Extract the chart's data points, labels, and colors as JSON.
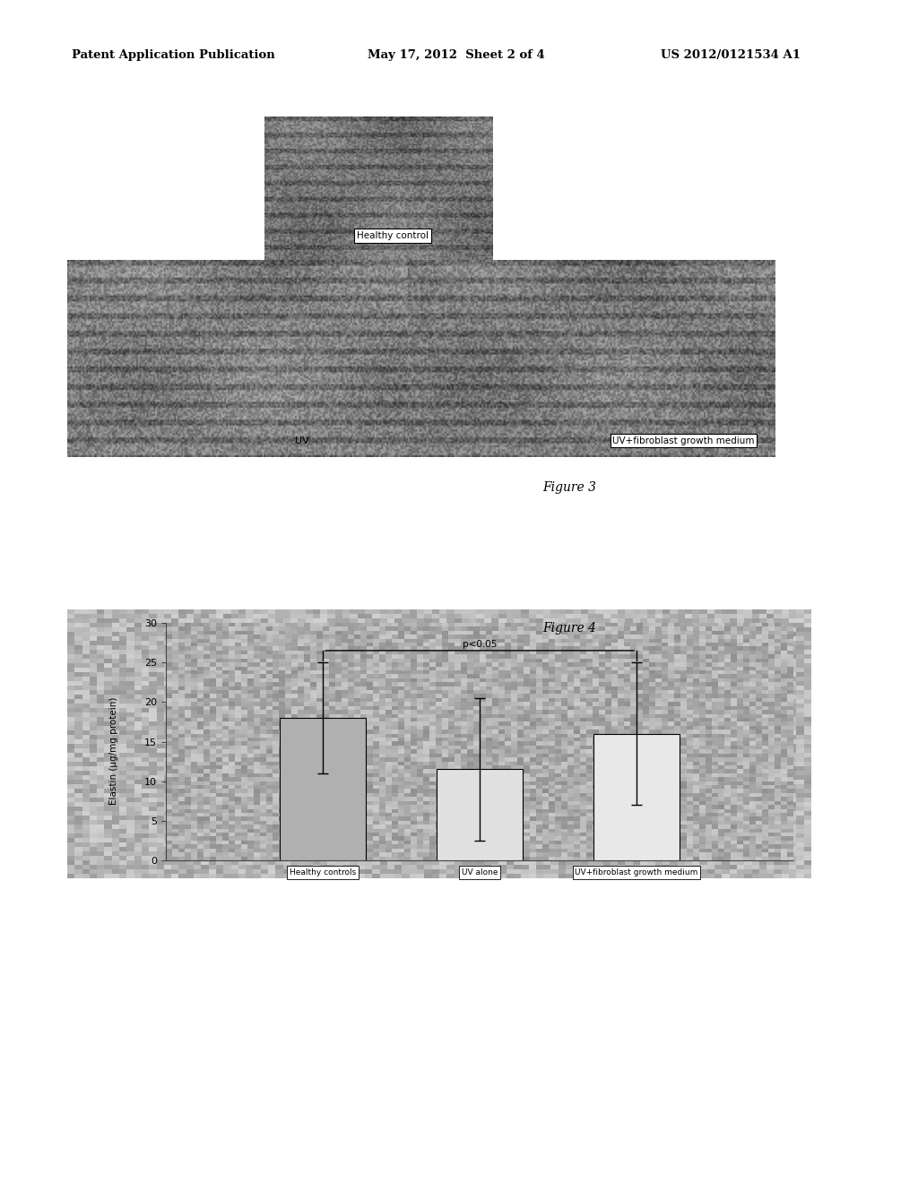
{
  "page_title_left": "Patent Application Publication",
  "page_title_mid": "May 17, 2012  Sheet 2 of 4",
  "page_title_right": "US 2012/0121534 A1",
  "figure3_label": "Figure 3",
  "figure4_label": "Figure 4",
  "bar_values": [
    18.0,
    11.5,
    16.0
  ],
  "bar_errors_upper": [
    7.0,
    9.0,
    9.0
  ],
  "bar_errors_lower": [
    7.0,
    9.0,
    9.0
  ],
  "bar_categories": [
    "Healthy controls",
    "UV alone",
    "UV+fibroblast growth medium"
  ],
  "ylabel": "Elastin (µg/mg protein)",
  "yticks": [
    0,
    5,
    10,
    15,
    20,
    25,
    30
  ],
  "significance_text": "p<0.05",
  "bar_colors": [
    "#b0b0b0",
    "#e0e0e0",
    "#e8e8e8"
  ],
  "bar_edge_color": "#000000",
  "healthy_control_label": "Healthy control",
  "uv_label": "UV",
  "uv_fibroblast_label": "UV+fibroblast growth medium",
  "fig3_outer_bg": "#c8c8c8",
  "fig3_top_img_bg": "#909090",
  "fig3_bottom_img_bg": "#989898",
  "fig4_bg": "#a8a8a8",
  "white_box_color": "#ffffff"
}
